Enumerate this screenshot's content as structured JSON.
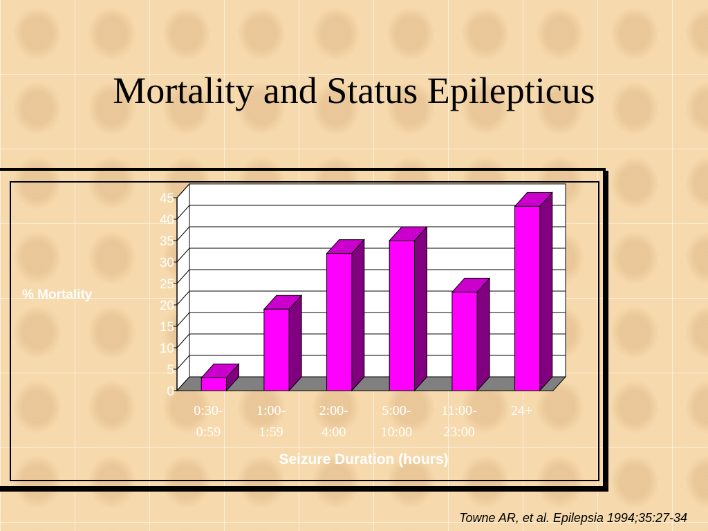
{
  "slide": {
    "title": "Mortality and Status Epilepticus",
    "citation": "Towne AR, et al. Epilepsia 1994;35:27-34"
  },
  "chart_data": {
    "type": "bar",
    "categories": [
      "0:30-\n0:59",
      "1:00-\n1:59",
      "2:00-\n4:00",
      "5:00-\n10:00",
      "11:00-\n23:00",
      "24+"
    ],
    "values": [
      3,
      19,
      32,
      35,
      23,
      43
    ],
    "ylabel": "% Mortality",
    "xlabel": "Seizure Duration (hours)",
    "ylim": [
      0,
      45
    ],
    "yticks": [
      0,
      5,
      10,
      15,
      20,
      25,
      30,
      35,
      40,
      45
    ],
    "grid": true,
    "colors": {
      "bar_front": "#ff00ff",
      "bar_top": "#cc00cc",
      "bar_side": "#800080",
      "floor": "#808080",
      "plot_bg": "#ffffff",
      "text": "#ffffff"
    }
  }
}
